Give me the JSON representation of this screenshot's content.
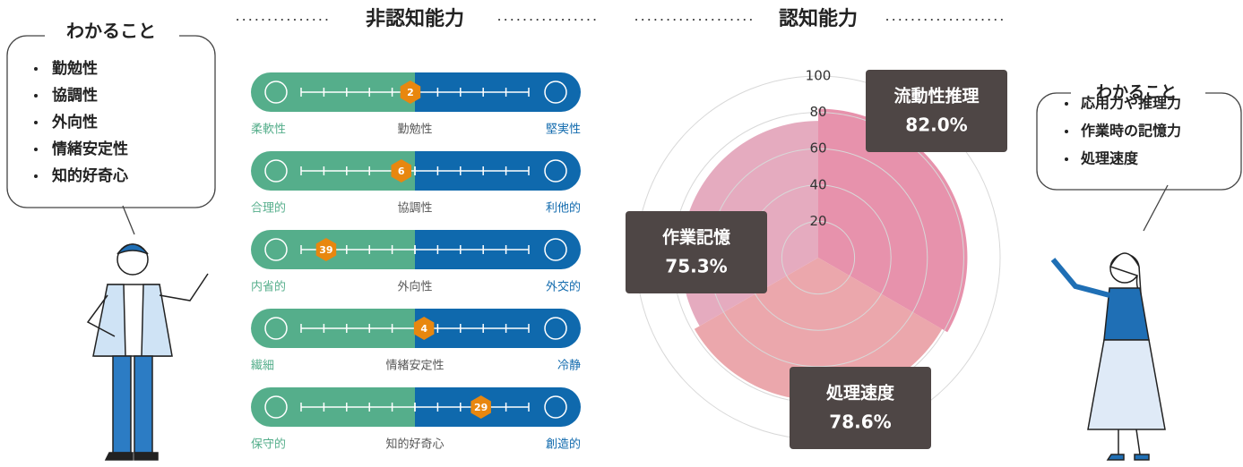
{
  "left_panel": {
    "title": "わかること",
    "items": [
      "勤勉性",
      "協調性",
      "外向性",
      "情緒安定性",
      "知的好奇心"
    ]
  },
  "non_cognitive": {
    "title": "非認知能力",
    "xlim": [
      0,
      50
    ],
    "xticks": [
      0,
      10,
      20,
      30,
      40,
      50
    ],
    "left_color": "#55ae8b",
    "right_color": "#0f69ad",
    "marker_color": "#e8870f",
    "scales": [
      {
        "left": "柔軟性",
        "center": "勤勉性",
        "right": "堅実性",
        "value": 2,
        "side": "left"
      },
      {
        "left": "合理的",
        "center": "協調性",
        "right": "利他的",
        "value": 6,
        "side": "left"
      },
      {
        "left": "内省的",
        "center": "外向性",
        "right": "外交的",
        "value": 39,
        "side": "left"
      },
      {
        "left": "繊細",
        "center": "情緒安定性",
        "right": "冷静",
        "value": 4,
        "side": "right"
      },
      {
        "left": "保守的",
        "center": "知的好奇心",
        "right": "創造的",
        "value": 29,
        "side": "right"
      }
    ]
  },
  "cognitive": {
    "type": "polar_area",
    "title": "認知能力",
    "rlim": [
      0,
      100
    ],
    "rticks": [
      20,
      40,
      60,
      80,
      100
    ],
    "categories": [
      "流動性推理",
      "処理速度",
      "作業記憶"
    ],
    "values": [
      82.0,
      78.6,
      75.3
    ],
    "value_labels": [
      "82.0%",
      "78.6%",
      "75.3%"
    ],
    "colors": [
      "#e68ca8",
      "#eaa2a8",
      "#e4a6bc"
    ]
  },
  "right_panel": {
    "title": "わかること",
    "items": [
      "応用力や推理力",
      "作業時の記憶力",
      "処理速度"
    ]
  }
}
